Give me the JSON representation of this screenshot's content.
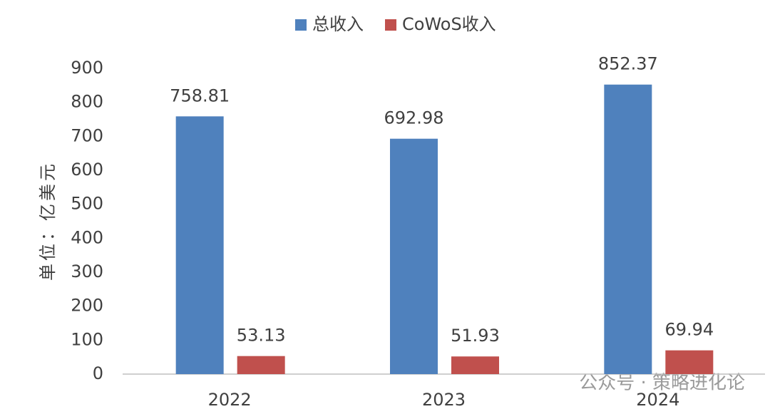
{
  "chart_data": {
    "type": "bar",
    "y_label": "单位：亿美元",
    "categories": [
      "2022",
      "2023",
      "2024"
    ],
    "series": [
      {
        "name": "总收入",
        "color": "#4f81bd",
        "values": [
          758.81,
          692.98,
          852.37
        ]
      },
      {
        "name": "CoWoS收入",
        "color": "#c0504d",
        "values": [
          53.13,
          51.93,
          69.94
        ]
      }
    ],
    "ylim": [
      0,
      900
    ],
    "yticks": [
      0,
      100,
      200,
      300,
      400,
      500,
      600,
      700,
      800,
      900
    ],
    "grid": false,
    "legend": "top",
    "watermark": "公众号 · 策略进化论"
  }
}
